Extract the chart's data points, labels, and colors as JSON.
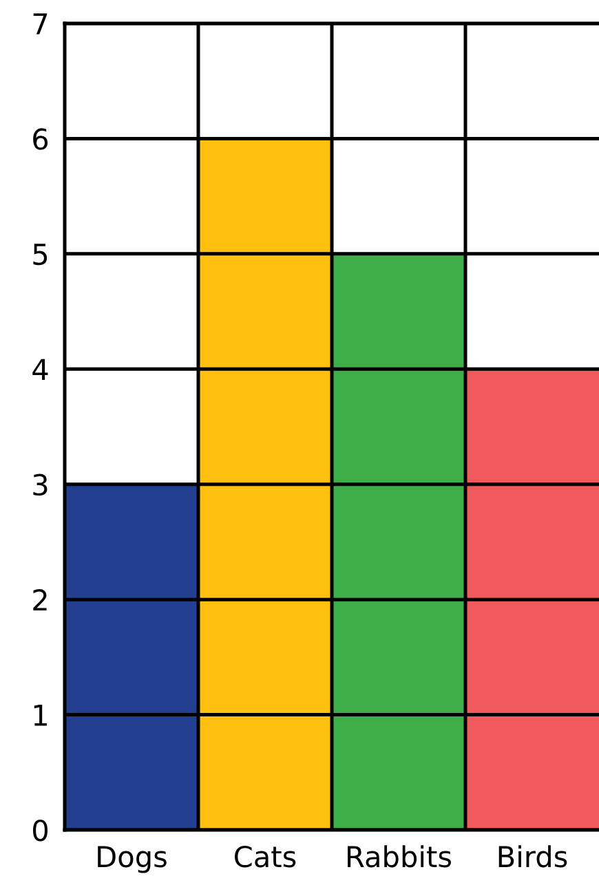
{
  "chart_data": {
    "type": "bar",
    "categories": [
      "Dogs",
      "Cats",
      "Rabbits",
      "Birds"
    ],
    "values": [
      3,
      6,
      5,
      4
    ],
    "colors": [
      "#233f8f",
      "#ffc010",
      "#3fae4a",
      "#f05a5c"
    ],
    "ylim": [
      0,
      7
    ],
    "yticks": [
      0,
      1,
      2,
      3,
      4,
      5,
      6,
      7
    ],
    "grid": true
  }
}
